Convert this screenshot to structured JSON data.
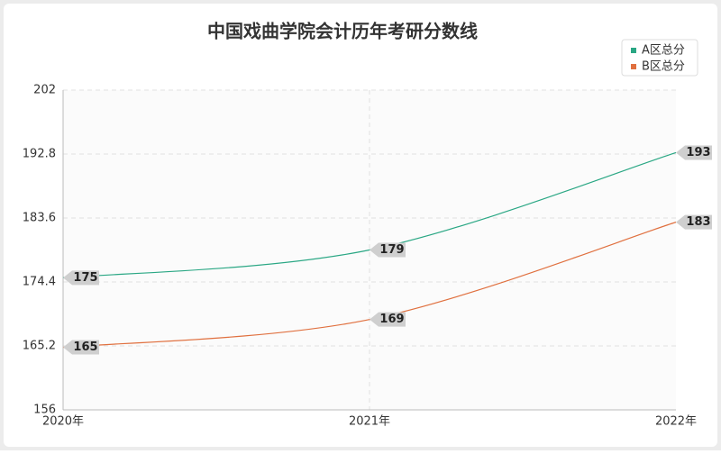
{
  "chart_data": {
    "type": "line",
    "title": "中国戏曲学院会计历年考研分数线",
    "categories": [
      "2020年",
      "2021年",
      "2022年"
    ],
    "series": [
      {
        "name": "A区总分",
        "color": "#2aa784",
        "values": [
          175,
          179,
          193
        ]
      },
      {
        "name": "B区总分",
        "color": "#e0703f",
        "values": [
          165,
          169,
          183
        ]
      }
    ],
    "ylim": [
      156,
      202
    ],
    "yticks": [
      156,
      165.2,
      174.4,
      183.6,
      192.8,
      202
    ],
    "grid": true,
    "legend": "top-right"
  }
}
